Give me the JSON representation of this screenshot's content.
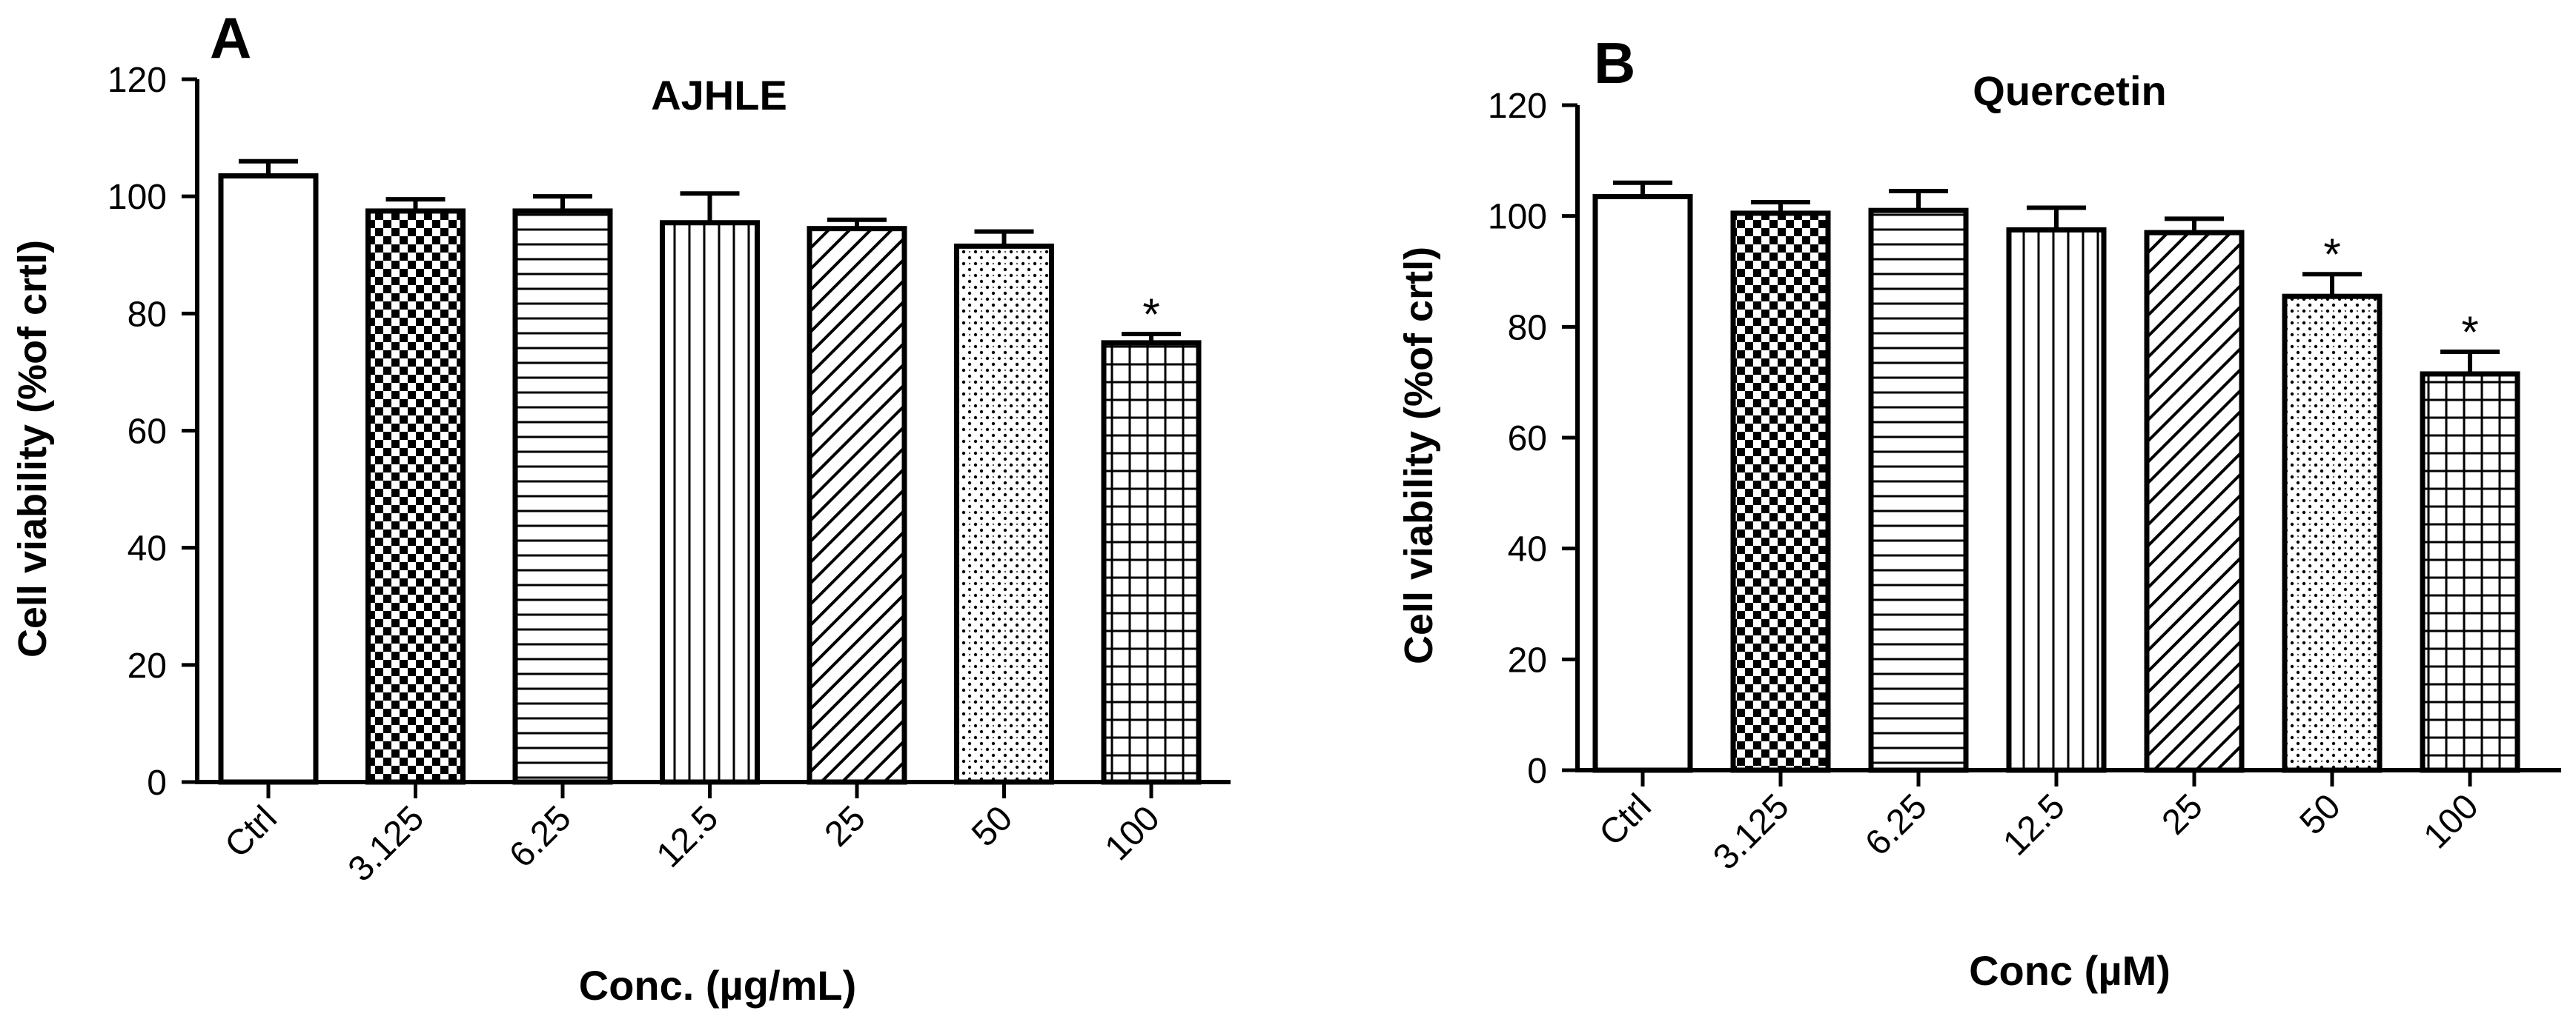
{
  "chart_data": [
    {
      "type": "bar",
      "panel_label": "A",
      "title": "AJHLE",
      "xlabel": "Conc. (µg/mL)",
      "ylabel": "Cell viability (%of crtl)",
      "ylim": [
        0,
        120
      ],
      "yticks": [
        "0",
        "20",
        "40",
        "60",
        "80",
        "100",
        "120"
      ],
      "categories": [
        "Ctrl",
        "3.125",
        "6.25",
        "12.5",
        "25",
        "50",
        "100"
      ],
      "values": [
        103.5,
        97.5,
        97.5,
        95.5,
        94.5,
        91.5,
        75
      ],
      "errors": [
        2.5,
        2,
        2.5,
        5,
        1.5,
        2.5,
        1.5
      ],
      "patterns": [
        "none",
        "checker",
        "hlines",
        "vlines",
        "diagonal",
        "dots",
        "grid"
      ],
      "annotations": [
        "",
        "",
        "",
        "",
        "",
        "",
        "*"
      ]
    },
    {
      "type": "bar",
      "panel_label": "B",
      "title": "Quercetin",
      "xlabel": "Conc (µM)",
      "ylabel": "Cell viability (%of crtl)",
      "ylim": [
        0,
        120
      ],
      "yticks": [
        "0",
        "20",
        "40",
        "60",
        "80",
        "100",
        "120"
      ],
      "categories": [
        "Ctrl",
        "3.125",
        "6.25",
        "12.5",
        "25",
        "50",
        "100"
      ],
      "values": [
        103.5,
        100.5,
        101,
        97.5,
        97,
        85.5,
        71.5
      ],
      "errors": [
        2.5,
        2,
        3.5,
        4,
        2.5,
        4,
        4
      ],
      "patterns": [
        "none",
        "checker",
        "hlines",
        "vlines",
        "diagonal",
        "dots",
        "grid"
      ],
      "annotations": [
        "",
        "",
        "",
        "",
        "",
        "*",
        "*"
      ]
    }
  ]
}
